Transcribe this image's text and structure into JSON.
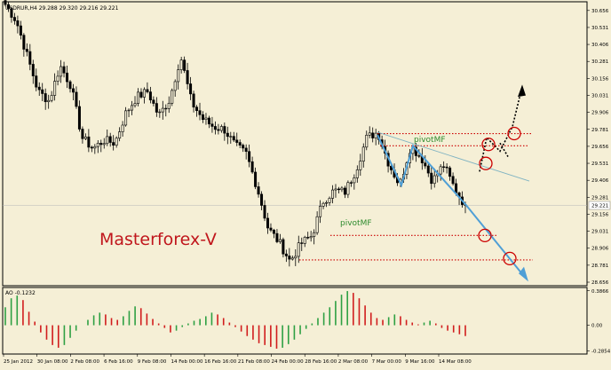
{
  "header": {
    "symbol_info": "USDRUR,H4  29.288 29.320 29.216 29.221"
  },
  "watermark": "Masterforex-V",
  "oscillator": {
    "label": "AO -0.1232"
  },
  "annotations": {
    "pivot_upper": "pivotMF",
    "pivot_lower": "pivotMF"
  },
  "colors": {
    "background": "#f5efd6",
    "bars": "#000000",
    "ao_up": "#2ea043",
    "ao_down": "#d11d1d",
    "arrows": "#4f9fd6",
    "levels": "#cc0000",
    "watermark": "#c0161c",
    "pivot_text": "#2e8b2e"
  },
  "chart_data": [
    {
      "type": "candlestick",
      "y_ticks": [
        "30.656",
        "30.531",
        "30.406",
        "30.281",
        "30.156",
        "30.031",
        "29.906",
        "29.781",
        "29.656",
        "29.531",
        "29.406",
        "29.281",
        "29.221",
        "29.156",
        "29.031",
        "28.906",
        "28.781",
        "28.656"
      ],
      "ylim": [
        28.63,
        30.72
      ],
      "current_price": 29.221,
      "x_ticks": [
        "25 Jan 2012",
        "30 Jan 08:00",
        "2 Feb 08:00",
        "6 Feb 16:00",
        "9 Feb 08:00",
        "14 Feb 00:00",
        "16 Feb 16:00",
        "21 Feb 08:00",
        "24 Feb 00:00",
        "28 Feb 16:00",
        "2 Mar 08:00",
        "7 Mar 00:00",
        "9 Mar 16:00",
        "14 Mar 08:00"
      ],
      "key_prices": [
        30.7,
        30.58,
        30.32,
        30.06,
        29.99,
        30.25,
        30.1,
        29.72,
        29.64,
        29.7,
        29.68,
        29.9,
        30.02,
        30.06,
        29.88,
        30.0,
        30.32,
        29.98,
        29.86,
        29.8,
        29.78,
        29.66,
        29.6,
        29.35,
        29.05,
        28.95,
        28.81,
        28.94,
        29.0,
        29.25,
        29.33,
        29.32,
        29.48,
        29.72,
        29.76,
        29.53,
        29.37,
        29.66,
        29.57,
        29.4,
        29.52,
        29.35,
        29.22
      ],
      "levels": [
        29.75,
        29.66,
        29.0,
        28.82
      ],
      "pivots": [
        29.66,
        29.03
      ]
    },
    {
      "type": "bar",
      "title": "AO -0.1232",
      "y_ticks": [
        "0.3866",
        "0.00",
        "-0.2854"
      ],
      "ylim": [
        -0.32,
        0.42
      ],
      "values": [
        0.2,
        0.3,
        0.33,
        0.28,
        0.15,
        0.04,
        -0.08,
        -0.16,
        -0.22,
        -0.25,
        -0.22,
        -0.14,
        -0.06,
        0.0,
        0.06,
        0.11,
        0.14,
        0.12,
        0.08,
        0.06,
        0.1,
        0.16,
        0.21,
        0.19,
        0.13,
        0.07,
        0.02,
        -0.03,
        -0.08,
        -0.06,
        -0.02,
        0.02,
        0.05,
        0.07,
        0.1,
        0.14,
        0.12,
        0.08,
        0.03,
        -0.02,
        -0.07,
        -0.12,
        -0.16,
        -0.2,
        -0.22,
        -0.24,
        -0.26,
        -0.25,
        -0.21,
        -0.16,
        -0.1,
        -0.04,
        0.02,
        0.08,
        0.14,
        0.2,
        0.27,
        0.34,
        0.38,
        0.36,
        0.3,
        0.22,
        0.14,
        0.08,
        0.06,
        0.09,
        0.12,
        0.1,
        0.06,
        0.03,
        0.01,
        0.03,
        0.05,
        0.02,
        -0.03,
        -0.06,
        -0.08,
        -0.1,
        -0.12
      ]
    }
  ]
}
